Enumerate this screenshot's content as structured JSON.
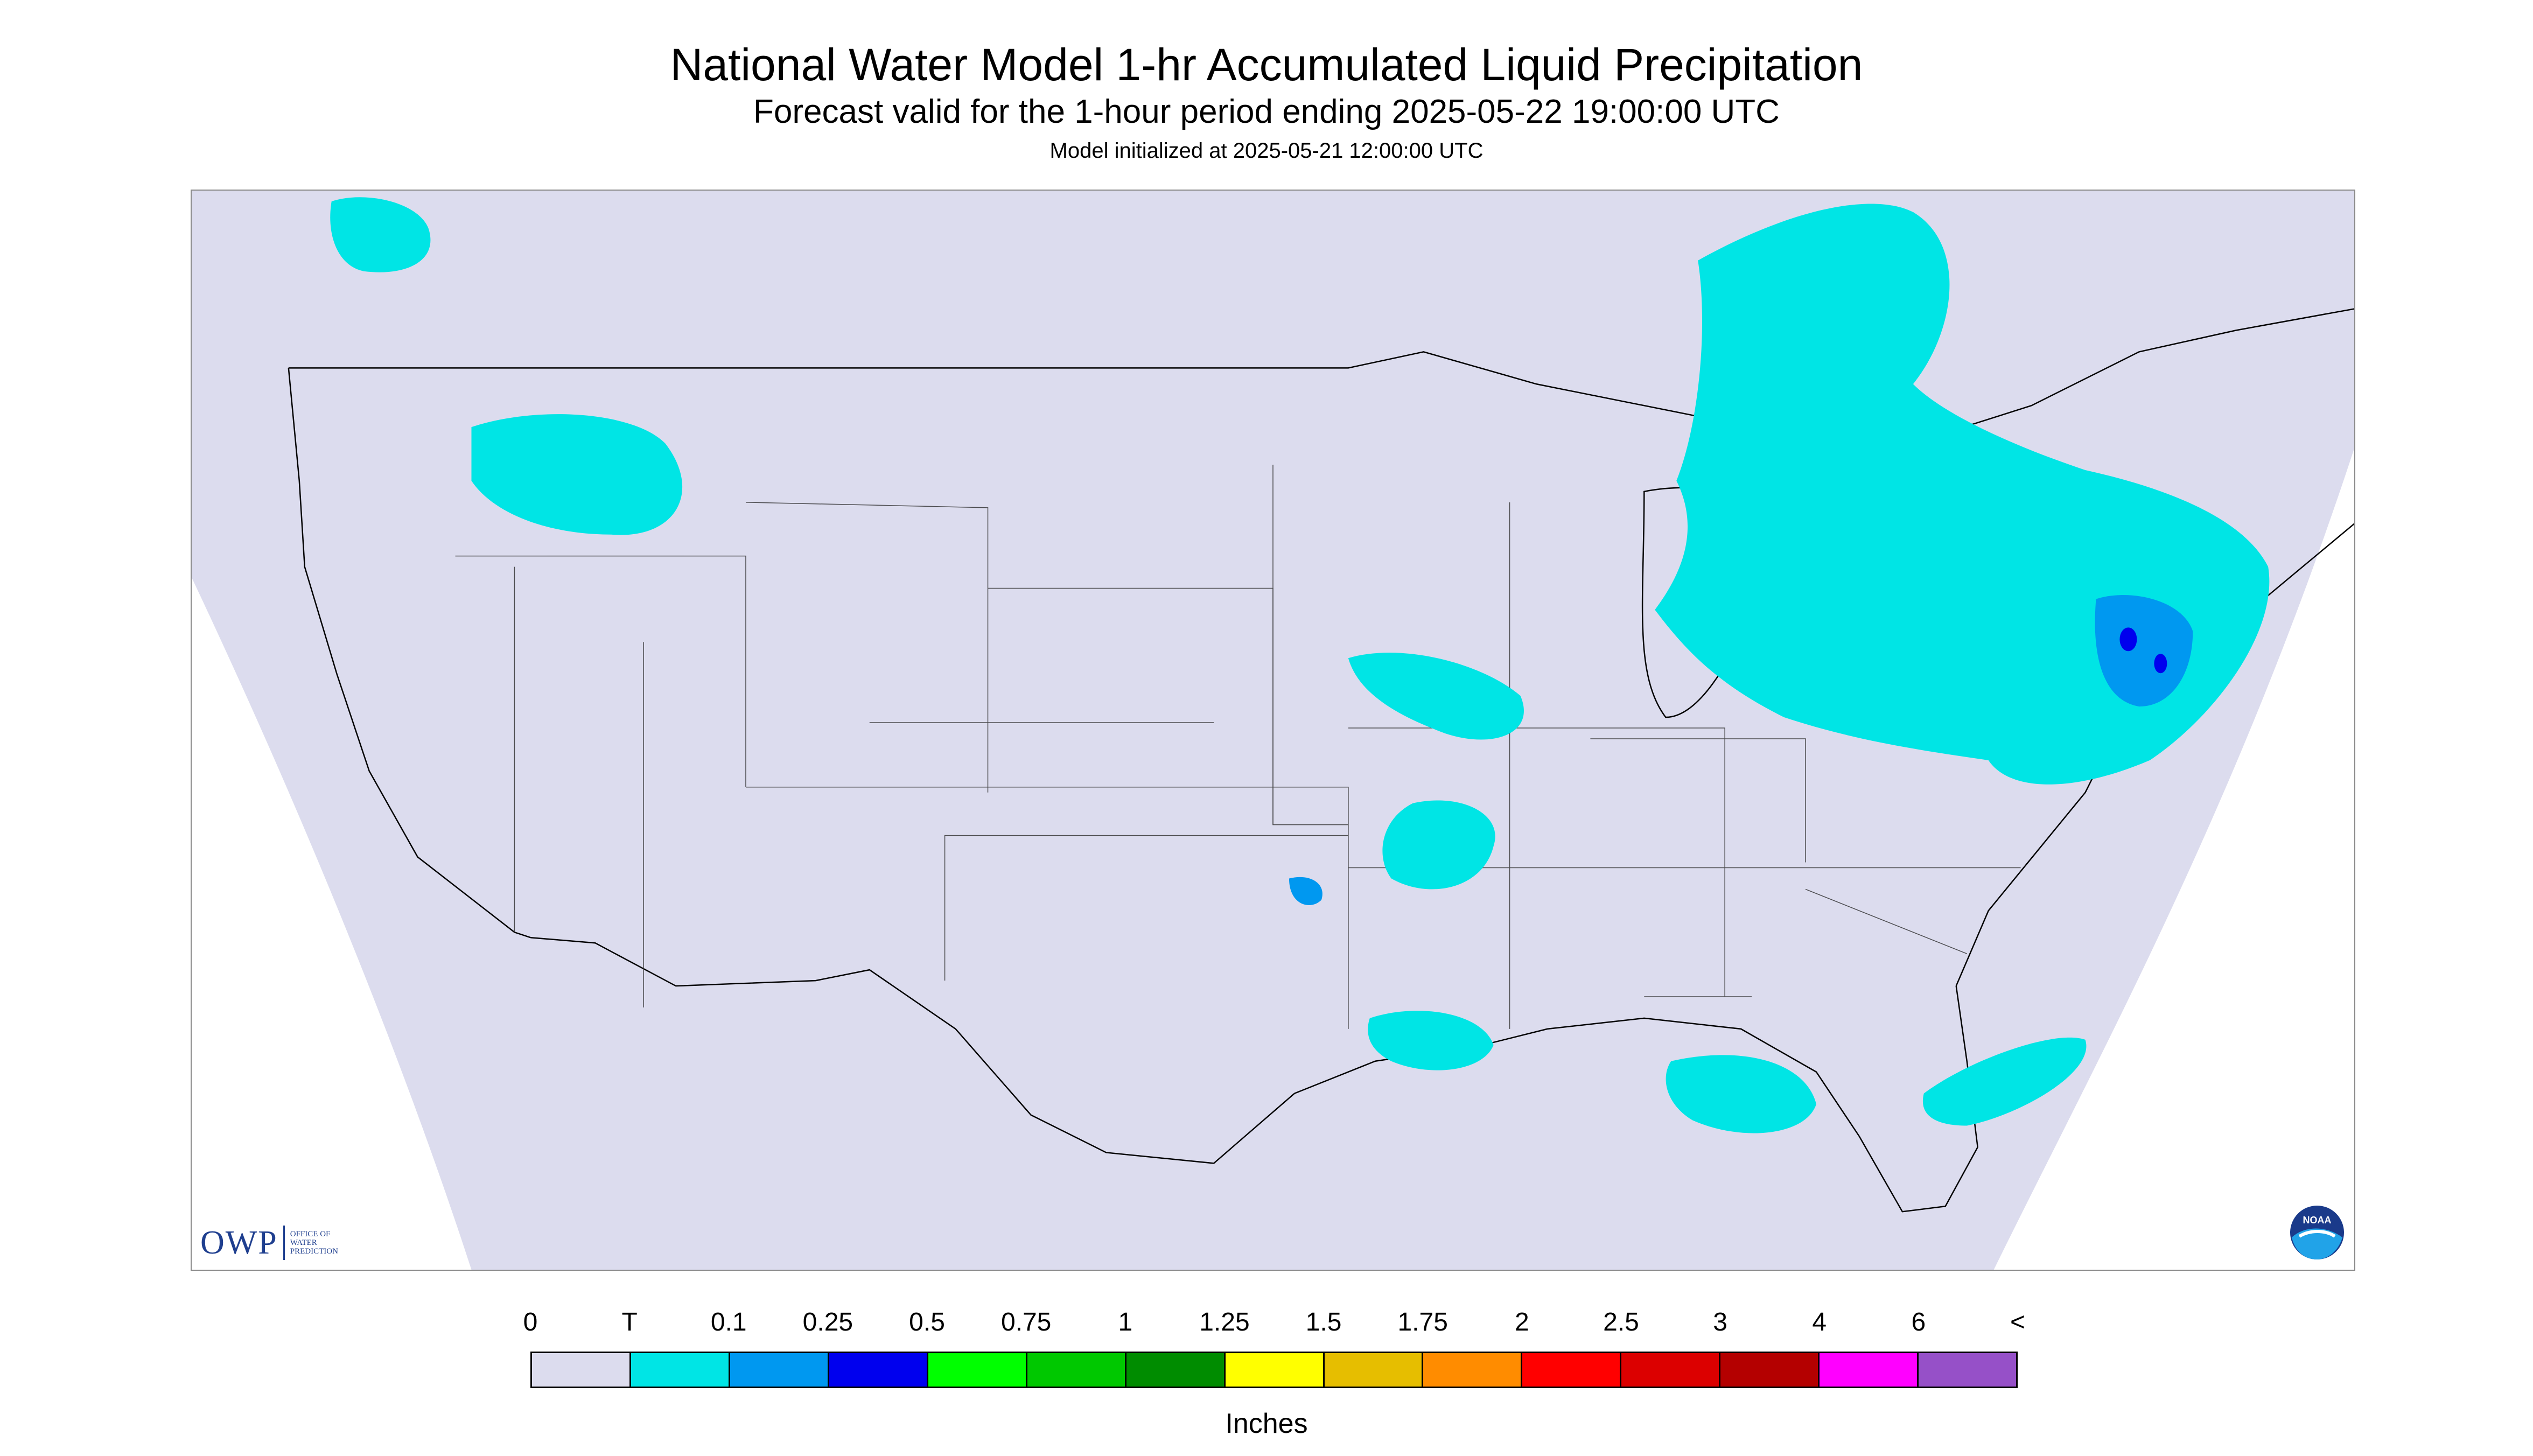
{
  "title": "National Water Model 1-hr Accumulated Liquid Precipitation",
  "subtitle": "Forecast valid for the 1-hour period ending 2025-05-22 19:00:00 UTC",
  "init_line": "Model initialized at 2025-05-21 12:00:00 UTC",
  "map": {
    "region": "CONUS",
    "background_color": "#dcdcee",
    "outside_color": "#ffffff",
    "boundary_color": "#000000",
    "precip_colors": {
      "trace": "#00e5e5",
      "light": "#0098f0",
      "moderate": "#0000ee"
    }
  },
  "logos": {
    "owp": {
      "name": "owp-logo",
      "text": "OWP",
      "sub": [
        "OFFICE OF",
        "WATER",
        "PREDICTION"
      ]
    },
    "noaa": {
      "name": "noaa-icon",
      "text": "NOAA"
    }
  },
  "legend": {
    "units": "Inches",
    "tick_labels": [
      "0",
      "T",
      "0.1",
      "0.25",
      "0.5",
      "0.75",
      "1",
      "1.25",
      "1.5",
      "1.75",
      "2",
      "2.5",
      "3",
      "4",
      "6",
      "<"
    ],
    "colors": [
      "#dcdcee",
      "#00e5e5",
      "#0098f0",
      "#0000ee",
      "#00ff00",
      "#00c800",
      "#008c00",
      "#ffff00",
      "#e6be00",
      "#ff8c00",
      "#ff0000",
      "#dc0000",
      "#b40000",
      "#ff00ff",
      "#9650c8"
    ]
  }
}
